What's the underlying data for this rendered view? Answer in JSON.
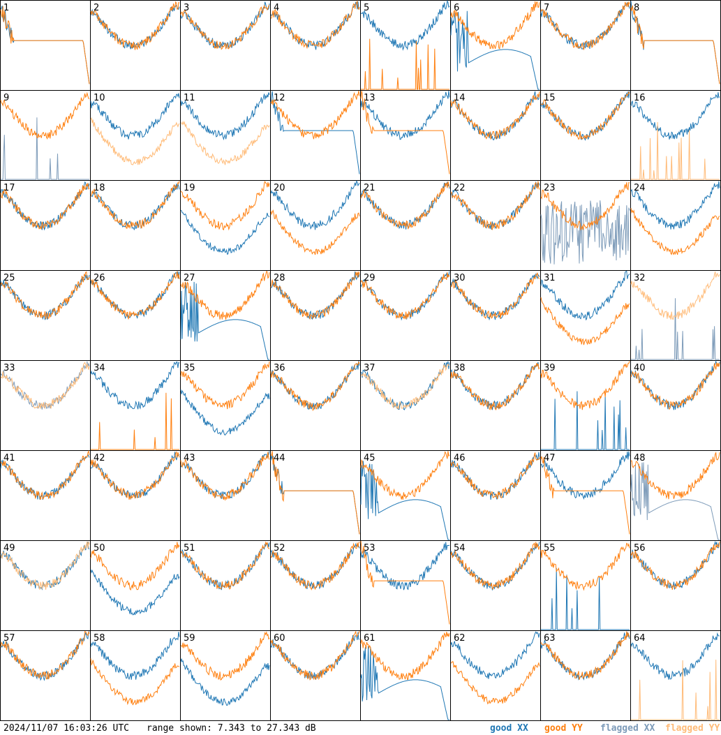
{
  "footer": {
    "timestamp": "2024/11/07 16:03:26 UTC",
    "range": "range shown: 7.343 to 27.343 dB"
  },
  "legend": [
    {
      "label": "good XX",
      "color": "#1f77b4"
    },
    {
      "label": "good YY",
      "color": "#ff7f0e"
    },
    {
      "label": "flagged XX",
      "color": "#7d9bb9"
    },
    {
      "label": "flagged YY",
      "color": "#ffbb78"
    }
  ],
  "chart_data": {
    "type": "line",
    "title": "",
    "xlabel": "",
    "ylabel": "",
    "ylim": [
      7.343,
      27.343
    ],
    "grid": "8x8 small multiples",
    "tiles": [
      {
        "label": "1",
        "xx": "good",
        "yy": "good",
        "xx_shape": "flat",
        "yy_shape": "flat"
      },
      {
        "label": "2",
        "xx": "good",
        "yy": "good",
        "xx_shape": "normal",
        "yy_shape": "normal"
      },
      {
        "label": "3",
        "xx": "good",
        "yy": "good",
        "xx_shape": "normal",
        "yy_shape": "normal"
      },
      {
        "label": "4",
        "xx": "good",
        "yy": "good",
        "xx_shape": "normal",
        "yy_shape": "normal"
      },
      {
        "label": "5",
        "xx": "good",
        "yy": "good",
        "xx_shape": "normal",
        "yy_shape": "dead"
      },
      {
        "label": "6",
        "xx": "good",
        "yy": "good",
        "xx_shape": "hump",
        "yy_shape": "normal"
      },
      {
        "label": "7",
        "xx": "good",
        "yy": "good",
        "xx_shape": "normal",
        "yy_shape": "normal"
      },
      {
        "label": "8",
        "xx": "good",
        "yy": "good",
        "xx_shape": "flat",
        "yy_shape": "flat"
      },
      {
        "label": "9",
        "xx": "flagged",
        "yy": "good",
        "xx_shape": "dead",
        "yy_shape": "normal"
      },
      {
        "label": "10",
        "xx": "good",
        "yy": "flagged",
        "xx_shape": "normal",
        "yy_shape": "low"
      },
      {
        "label": "11",
        "xx": "good",
        "yy": "flagged",
        "xx_shape": "normal",
        "yy_shape": "low"
      },
      {
        "label": "12",
        "xx": "good",
        "yy": "good",
        "xx_shape": "flat",
        "yy_shape": "normal"
      },
      {
        "label": "13",
        "xx": "good",
        "yy": "good",
        "xx_shape": "normal",
        "yy_shape": "flat"
      },
      {
        "label": "14",
        "xx": "good",
        "yy": "good",
        "xx_shape": "normal",
        "yy_shape": "normal"
      },
      {
        "label": "15",
        "xx": "good",
        "yy": "good",
        "xx_shape": "normal",
        "yy_shape": "normal"
      },
      {
        "label": "16",
        "xx": "good",
        "yy": "flagged",
        "xx_shape": "normal",
        "yy_shape": "dead"
      },
      {
        "label": "17",
        "xx": "good",
        "yy": "good",
        "xx_shape": "normal",
        "yy_shape": "normal"
      },
      {
        "label": "18",
        "xx": "good",
        "yy": "good",
        "xx_shape": "normal",
        "yy_shape": "normal"
      },
      {
        "label": "19",
        "xx": "good",
        "yy": "good",
        "xx_shape": "low",
        "yy_shape": "normal"
      },
      {
        "label": "20",
        "xx": "good",
        "yy": "good",
        "xx_shape": "normal",
        "yy_shape": "low"
      },
      {
        "label": "21",
        "xx": "good",
        "yy": "good",
        "xx_shape": "normal",
        "yy_shape": "normal"
      },
      {
        "label": "22",
        "xx": "good",
        "yy": "good",
        "xx_shape": "normal",
        "yy_shape": "normal"
      },
      {
        "label": "23",
        "xx": "flagged",
        "yy": "good",
        "xx_shape": "noise",
        "yy_shape": "normal"
      },
      {
        "label": "24",
        "xx": "good",
        "yy": "good",
        "xx_shape": "normal",
        "yy_shape": "low"
      },
      {
        "label": "25",
        "xx": "good",
        "yy": "good",
        "xx_shape": "normal",
        "yy_shape": "normal"
      },
      {
        "label": "26",
        "xx": "good",
        "yy": "good",
        "xx_shape": "normal",
        "yy_shape": "normal"
      },
      {
        "label": "27",
        "xx": "good",
        "yy": "good",
        "xx_shape": "hump",
        "yy_shape": "normal"
      },
      {
        "label": "28",
        "xx": "good",
        "yy": "good",
        "xx_shape": "normal",
        "yy_shape": "normal"
      },
      {
        "label": "29",
        "xx": "good",
        "yy": "good",
        "xx_shape": "normal",
        "yy_shape": "normal"
      },
      {
        "label": "30",
        "xx": "good",
        "yy": "good",
        "xx_shape": "normal",
        "yy_shape": "normal"
      },
      {
        "label": "31",
        "xx": "good",
        "yy": "good",
        "xx_shape": "normal",
        "yy_shape": "low"
      },
      {
        "label": "32",
        "xx": "flagged",
        "yy": "flagged",
        "xx_shape": "dead",
        "yy_shape": "normal"
      },
      {
        "label": "33",
        "xx": "flagged",
        "yy": "flagged",
        "xx_shape": "normal",
        "yy_shape": "normal"
      },
      {
        "label": "34",
        "xx": "good",
        "yy": "good",
        "xx_shape": "normal",
        "yy_shape": "dead"
      },
      {
        "label": "35",
        "xx": "good",
        "yy": "good",
        "xx_shape": "low",
        "yy_shape": "normal"
      },
      {
        "label": "36",
        "xx": "good",
        "yy": "good",
        "xx_shape": "normal",
        "yy_shape": "normal"
      },
      {
        "label": "37",
        "xx": "good",
        "yy": "flagged",
        "xx_shape": "normal",
        "yy_shape": "normal"
      },
      {
        "label": "38",
        "xx": "good",
        "yy": "good",
        "xx_shape": "normal",
        "yy_shape": "normal"
      },
      {
        "label": "39",
        "xx": "good",
        "yy": "good",
        "xx_shape": "dead",
        "yy_shape": "normal"
      },
      {
        "label": "40",
        "xx": "good",
        "yy": "good",
        "xx_shape": "normal",
        "yy_shape": "normal"
      },
      {
        "label": "41",
        "xx": "good",
        "yy": "good",
        "xx_shape": "normal",
        "yy_shape": "normal"
      },
      {
        "label": "42",
        "xx": "good",
        "yy": "good",
        "xx_shape": "normal",
        "yy_shape": "normal"
      },
      {
        "label": "43",
        "xx": "good",
        "yy": "good",
        "xx_shape": "normal",
        "yy_shape": "normal"
      },
      {
        "label": "44",
        "xx": "good",
        "yy": "good",
        "xx_shape": "flat",
        "yy_shape": "flat"
      },
      {
        "label": "45",
        "xx": "good",
        "yy": "good",
        "xx_shape": "hump",
        "yy_shape": "normal"
      },
      {
        "label": "46",
        "xx": "good",
        "yy": "good",
        "xx_shape": "normal",
        "yy_shape": "normal"
      },
      {
        "label": "47",
        "xx": "good",
        "yy": "good",
        "xx_shape": "normal",
        "yy_shape": "flat"
      },
      {
        "label": "48",
        "xx": "flagged",
        "yy": "good",
        "xx_shape": "hump",
        "yy_shape": "normal"
      },
      {
        "label": "49",
        "xx": "good",
        "yy": "flagged",
        "xx_shape": "normal",
        "yy_shape": "normal"
      },
      {
        "label": "50",
        "xx": "good",
        "yy": "good",
        "xx_shape": "low",
        "yy_shape": "normal"
      },
      {
        "label": "51",
        "xx": "good",
        "yy": "good",
        "xx_shape": "normal",
        "yy_shape": "normal"
      },
      {
        "label": "52",
        "xx": "good",
        "yy": "good",
        "xx_shape": "normal",
        "yy_shape": "normal"
      },
      {
        "label": "53",
        "xx": "good",
        "yy": "good",
        "xx_shape": "normal",
        "yy_shape": "flat"
      },
      {
        "label": "54",
        "xx": "good",
        "yy": "good",
        "xx_shape": "normal",
        "yy_shape": "normal"
      },
      {
        "label": "55",
        "xx": "good",
        "yy": "good",
        "xx_shape": "dead",
        "yy_shape": "normal"
      },
      {
        "label": "56",
        "xx": "good",
        "yy": "good",
        "xx_shape": "normal",
        "yy_shape": "normal"
      },
      {
        "label": "57",
        "xx": "good",
        "yy": "good",
        "xx_shape": "normal",
        "yy_shape": "normal"
      },
      {
        "label": "58",
        "xx": "good",
        "yy": "good",
        "xx_shape": "normal",
        "yy_shape": "low"
      },
      {
        "label": "59",
        "xx": "good",
        "yy": "good",
        "xx_shape": "low",
        "yy_shape": "normal"
      },
      {
        "label": "60",
        "xx": "good",
        "yy": "good",
        "xx_shape": "normal",
        "yy_shape": "normal"
      },
      {
        "label": "61",
        "xx": "good",
        "yy": "good",
        "xx_shape": "hump",
        "yy_shape": "normal"
      },
      {
        "label": "62",
        "xx": "good",
        "yy": "good",
        "xx_shape": "normal",
        "yy_shape": "low"
      },
      {
        "label": "63",
        "xx": "good",
        "yy": "good",
        "xx_shape": "normal",
        "yy_shape": "normal"
      },
      {
        "label": "64",
        "xx": "good",
        "yy": "flagged",
        "xx_shape": "normal",
        "yy_shape": "dead"
      }
    ]
  }
}
